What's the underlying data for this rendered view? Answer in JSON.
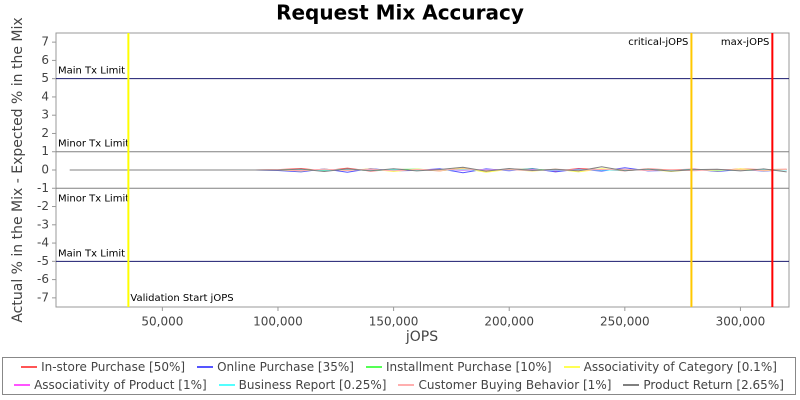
{
  "chart_data": {
    "type": "line",
    "title": "Request Mix Accuracy",
    "x_label": "jOPS",
    "y_label": "Actual % in the Mix - Expected % in the Mix",
    "xlim": [
      4000,
      321000
    ],
    "ylim": [
      -7.5,
      7.5
    ],
    "xticks": [
      {
        "value": 50000,
        "label": "50,000"
      },
      {
        "value": 100000,
        "label": "100,000"
      },
      {
        "value": 150000,
        "label": "150,000"
      },
      {
        "value": 200000,
        "label": "200,000"
      },
      {
        "value": 250000,
        "label": "250,000"
      },
      {
        "value": 300000,
        "label": "300,000"
      }
    ],
    "yticks": [
      -7,
      -6,
      -5,
      -4,
      -3,
      -2,
      -1,
      0,
      1,
      2,
      3,
      4,
      5,
      6,
      7
    ],
    "limits": [
      {
        "label": "Main Tx Limit",
        "value": 5,
        "color": "#1a1a6e"
      },
      {
        "label": "Minor Tx Limit",
        "value": 1,
        "color": "#808080"
      },
      {
        "label": "Minor Tx Limit",
        "value": -1,
        "color": "#808080"
      },
      {
        "label": "Main Tx Limit",
        "value": -5,
        "color": "#1a1a6e"
      }
    ],
    "markers": [
      {
        "label": "Validation Start jOPS",
        "value": 35300,
        "color": "#ffff00"
      },
      {
        "label": "critical-jOPS",
        "value": 278800,
        "color": "#ffc800"
      },
      {
        "label": "max-jOPS",
        "value": 313800,
        "color": "#ff0000"
      }
    ],
    "x": [
      10000,
      20000,
      30000,
      40000,
      50000,
      60000,
      70000,
      80000,
      90000,
      100000,
      110000,
      120000,
      130000,
      140000,
      150000,
      160000,
      170000,
      180000,
      190000,
      200000,
      210000,
      220000,
      230000,
      240000,
      250000,
      260000,
      270000,
      280000,
      290000,
      300000,
      310000,
      320000
    ],
    "series": [
      {
        "name": "In-store Purchase [50%]",
        "color": "#ff5555",
        "values": [
          0,
          0,
          0,
          0,
          0,
          0,
          0,
          0,
          0,
          0.02,
          0.08,
          -0.05,
          0.1,
          -0.06,
          0.04,
          0.02,
          -0.05,
          0.1,
          -0.08,
          0.05,
          0.03,
          -0.06,
          0.08,
          0.02,
          -0.04,
          0.06,
          0.01,
          0.05,
          -0.03,
          0.06,
          0.02,
          0.04
        ]
      },
      {
        "name": "Online Purchase [35%]",
        "color": "#5555ff",
        "values": [
          0,
          0,
          0,
          0,
          0,
          0,
          0,
          0,
          0,
          -0.03,
          -0.1,
          0.06,
          -0.12,
          0.08,
          -0.05,
          -0.02,
          0.07,
          -0.15,
          0.06,
          -0.04,
          0.08,
          -0.1,
          0.05,
          -0.06,
          0.12,
          -0.05,
          -0.02,
          0.04,
          -0.08,
          0.03,
          -0.06,
          0.02
        ]
      },
      {
        "name": "Installment Purchase [10%]",
        "color": "#55ff55",
        "values": [
          0,
          0,
          0,
          0,
          0,
          0,
          0,
          0,
          0,
          0.01,
          0.03,
          -0.02,
          0.04,
          -0.03,
          0.02,
          0.05,
          -0.02,
          0.03,
          -0.04,
          0.02,
          0.05,
          -0.03,
          0.01,
          0.04,
          -0.02,
          0.03,
          -0.01,
          0.02,
          0.03,
          -0.02,
          0.01,
          0.02
        ]
      },
      {
        "name": "Associativity of Category [0.1%]",
        "color": "#ffff55",
        "values": [
          0,
          0,
          0,
          0,
          0,
          0,
          0,
          0,
          0,
          0,
          -0.05,
          0.04,
          -0.03,
          0.06,
          -0.08,
          0.05,
          -0.04,
          0.1,
          -0.12,
          0.04,
          -0.06,
          0.05,
          -0.1,
          0.07,
          -0.03,
          0.04,
          -0.08,
          0.03,
          -0.05,
          0.06,
          -0.04,
          0.03
        ]
      },
      {
        "name": "Associativity of Product [1%]",
        "color": "#ff55ff",
        "values": [
          0,
          0,
          0,
          0,
          0,
          0,
          0,
          0,
          0,
          0.01,
          -0.02,
          0.03,
          -0.01,
          0.02,
          -0.03,
          0.01,
          0.02,
          -0.02,
          0.03,
          -0.01,
          0.02,
          -0.03,
          0.01,
          0.02,
          -0.01,
          0.03,
          -0.02,
          0.01,
          0.02,
          -0.01,
          0.01,
          0
        ]
      },
      {
        "name": "Business Report [0.25%]",
        "color": "#55ffff",
        "values": [
          0,
          0,
          0,
          0,
          0,
          0,
          0,
          0,
          0,
          0,
          0.01,
          -0.01,
          0.02,
          -0.02,
          0.01,
          0,
          -0.01,
          0.02,
          -0.01,
          0.01,
          -0.02,
          0.01,
          0,
          0.01,
          -0.01,
          0.02,
          -0.01,
          0,
          0.01,
          -0.02,
          0.01,
          0
        ]
      },
      {
        "name": "Customer Buying Behavior [1%]",
        "color": "#ffafaf",
        "values": [
          0,
          0,
          0,
          0,
          0,
          0,
          0,
          0,
          0,
          0.02,
          -0.03,
          0.04,
          -0.02,
          0.05,
          -0.04,
          0.03,
          -0.02,
          0.06,
          -0.03,
          0.02,
          -0.04,
          0.05,
          -0.02,
          0.03,
          0.04,
          -0.03,
          0.02,
          -0.04,
          0.03,
          0.01,
          -0.02,
          0.03
        ]
      },
      {
        "name": "Product Return [2.65%]",
        "color": "#808080",
        "values": [
          0,
          0,
          0,
          0,
          0,
          0,
          0,
          0,
          0,
          -0.01,
          0.05,
          -0.08,
          0.06,
          -0.04,
          0.07,
          -0.05,
          0.03,
          0.15,
          -0.06,
          0.08,
          -0.03,
          0.04,
          -0.05,
          0.18,
          -0.04,
          0.05,
          -0.06,
          0.02,
          0.04,
          -0.05,
          0.06,
          -0.1
        ]
      }
    ]
  }
}
